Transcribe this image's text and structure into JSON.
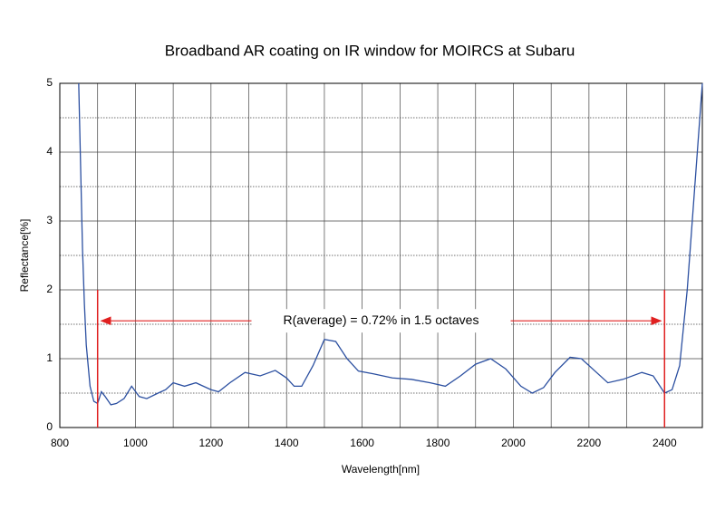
{
  "chart_data": {
    "type": "line",
    "title": "Broadband AR coating on IR window for MOIRCS at Subaru",
    "x_label": "Wavelength[nm]",
    "y_label": "Reflectance[%]",
    "xlim": [
      800,
      2500
    ],
    "ylim": [
      0,
      5
    ],
    "xticks": [
      800,
      1000,
      1200,
      1400,
      1600,
      1800,
      2000,
      2200,
      2400
    ],
    "yticks": [
      0,
      1,
      2,
      3,
      4,
      5
    ],
    "x_minor_ticks": [
      900,
      1100,
      1300,
      1500,
      1700,
      1900,
      2100,
      2300,
      2500
    ],
    "y_minor_ticks": [
      0.5,
      1.5,
      2.5,
      3.5,
      4.5
    ],
    "grid": true,
    "series": [
      {
        "name": "Reflectance",
        "color": "#2b4fa0",
        "x": [
          850,
          855,
          860,
          865,
          870,
          880,
          890,
          900,
          910,
          920,
          935,
          950,
          970,
          990,
          1010,
          1030,
          1060,
          1080,
          1100,
          1130,
          1160,
          1200,
          1220,
          1250,
          1290,
          1330,
          1370,
          1400,
          1420,
          1440,
          1470,
          1500,
          1530,
          1560,
          1590,
          1630,
          1680,
          1730,
          1780,
          1820,
          1860,
          1900,
          1940,
          1980,
          2020,
          2050,
          2080,
          2110,
          2150,
          2180,
          2220,
          2250,
          2290,
          2340,
          2370,
          2400,
          2420,
          2440,
          2460,
          2480,
          2500
        ],
        "values": [
          5,
          3.8,
          2.6,
          1.8,
          1.2,
          0.6,
          0.38,
          0.35,
          0.52,
          0.45,
          0.33,
          0.35,
          0.42,
          0.6,
          0.45,
          0.42,
          0.5,
          0.55,
          0.65,
          0.6,
          0.65,
          0.55,
          0.52,
          0.65,
          0.8,
          0.75,
          0.83,
          0.72,
          0.6,
          0.6,
          0.9,
          1.28,
          1.25,
          1.0,
          0.82,
          0.78,
          0.72,
          0.7,
          0.65,
          0.6,
          0.75,
          0.92,
          1.0,
          0.85,
          0.6,
          0.5,
          0.58,
          0.8,
          1.02,
          1.0,
          0.8,
          0.65,
          0.7,
          0.8,
          0.75,
          0.5,
          0.55,
          0.9,
          2.0,
          3.5,
          5
        ]
      }
    ],
    "annotation": {
      "text": "R(average) = 0.72% in 1.5 octaves",
      "color": "#e02020",
      "x_start": 900,
      "x_end": 2400,
      "y": 1.55,
      "y_top": 2
    }
  }
}
